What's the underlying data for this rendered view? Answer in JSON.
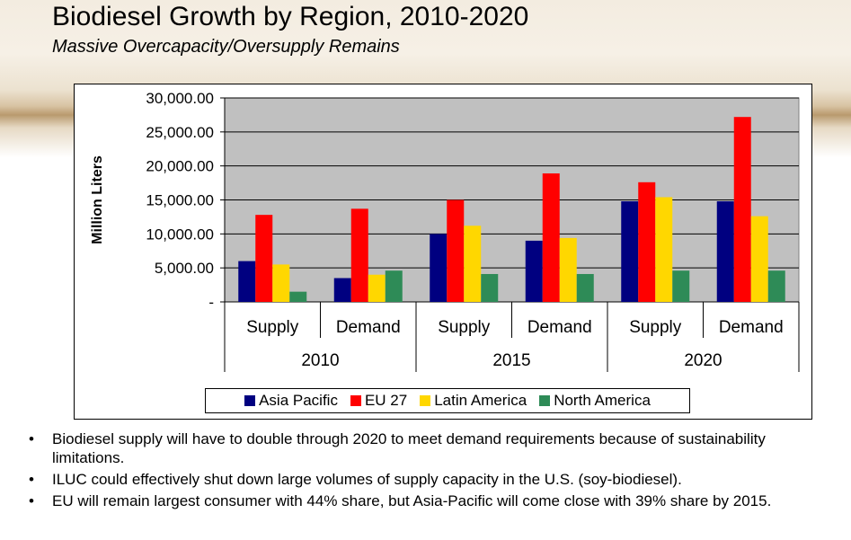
{
  "title": "Biodiesel Growth by Region, 2010-2020",
  "subtitle": "Massive Overcapacity/Oversupply Remains",
  "bullets": [
    "Biodiesel supply will have to double through 2020 to meet demand requirements because of sustainability limitations.",
    "ILUC could effectively shut down large volumes of supply capacity in the U.S. (soy-biodiesel).",
    "EU will remain largest consumer with 44% share, but Asia-Pacific will come close with 39% share by 2015."
  ],
  "chart_data": {
    "type": "bar",
    "ylabel": "Million Liters",
    "ylim": [
      0,
      30000
    ],
    "yticks": [
      0,
      5000,
      10000,
      15000,
      20000,
      25000,
      30000
    ],
    "ytick_labels": [
      "-",
      "5,000.00",
      "10,000.00",
      "15,000.00",
      "20,000.00",
      "25,000.00",
      "30,000.00"
    ],
    "groups": [
      "2010",
      "2015",
      "2020"
    ],
    "categories": [
      "Supply",
      "Demand",
      "Supply",
      "Demand",
      "Supply",
      "Demand"
    ],
    "grid": true,
    "legend_position": "bottom",
    "series": [
      {
        "name": "Asia Pacific",
        "color": "#000080",
        "values": [
          6000,
          3500,
          10000,
          9000,
          14800,
          14800
        ]
      },
      {
        "name": "EU 27",
        "color": "#ff0000",
        "values": [
          12800,
          13700,
          15000,
          18900,
          17600,
          27200
        ]
      },
      {
        "name": "Latin America",
        "color": "#ffd700",
        "values": [
          5500,
          4000,
          11200,
          9400,
          15400,
          12600
        ]
      },
      {
        "name": "North America",
        "color": "#2e8b57",
        "values": [
          1500,
          4600,
          4100,
          4100,
          4600,
          4600
        ]
      }
    ]
  }
}
